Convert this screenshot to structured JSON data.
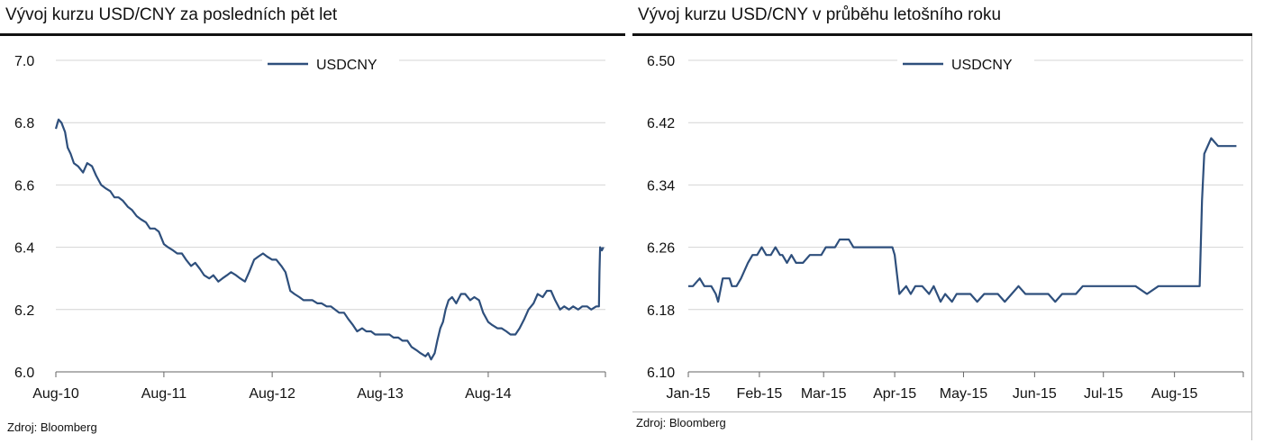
{
  "chart_data": [
    {
      "type": "line",
      "title": "Vývoj kurzu USD/CNY za posledních pět let",
      "source": "Zdroj: Bloomberg",
      "legend": "top-center",
      "grid": true,
      "ylim": [
        6.0,
        7.0
      ],
      "yticks": [
        6.0,
        6.2,
        6.4,
        6.6,
        6.8,
        7.0
      ],
      "ytick_labels": [
        "6.0",
        "6.2",
        "6.4",
        "6.6",
        "6.8",
        "7.0"
      ],
      "xlim": [
        "2010-08-01",
        "2015-09-01"
      ],
      "xticks": [
        "2010-08-01",
        "2011-08-01",
        "2012-08-01",
        "2013-08-01",
        "2014-08-01"
      ],
      "xtick_labels": [
        "Aug-10",
        "Aug-11",
        "Aug-12",
        "Aug-13",
        "Aug-14"
      ],
      "color": "#2e4f7c",
      "series": [
        {
          "name": "USDCNY",
          "x": [
            "2010-08-01",
            "2010-08-10",
            "2010-08-20",
            "2010-09-01",
            "2010-09-10",
            "2010-09-20",
            "2010-10-01",
            "2010-10-15",
            "2010-11-01",
            "2010-11-15",
            "2010-12-01",
            "2010-12-15",
            "2011-01-01",
            "2011-01-15",
            "2011-02-01",
            "2011-02-15",
            "2011-03-01",
            "2011-03-15",
            "2011-04-01",
            "2011-04-15",
            "2011-05-01",
            "2011-05-15",
            "2011-06-01",
            "2011-06-15",
            "2011-07-01",
            "2011-07-15",
            "2011-08-01",
            "2011-08-15",
            "2011-09-01",
            "2011-09-15",
            "2011-10-01",
            "2011-10-15",
            "2011-11-01",
            "2011-11-15",
            "2011-12-01",
            "2011-12-15",
            "2012-01-01",
            "2012-01-15",
            "2012-02-01",
            "2012-02-15",
            "2012-03-01",
            "2012-03-15",
            "2012-04-01",
            "2012-04-15",
            "2012-05-01",
            "2012-05-15",
            "2012-06-01",
            "2012-06-15",
            "2012-07-01",
            "2012-07-15",
            "2012-08-01",
            "2012-08-15",
            "2012-09-01",
            "2012-09-15",
            "2012-10-01",
            "2012-10-15",
            "2012-11-01",
            "2012-11-15",
            "2012-12-01",
            "2012-12-15",
            "2013-01-01",
            "2013-01-15",
            "2013-02-01",
            "2013-02-15",
            "2013-03-01",
            "2013-03-15",
            "2013-04-01",
            "2013-04-15",
            "2013-05-01",
            "2013-05-15",
            "2013-06-01",
            "2013-06-15",
            "2013-07-01",
            "2013-07-15",
            "2013-08-01",
            "2013-08-15",
            "2013-09-01",
            "2013-09-15",
            "2013-10-01",
            "2013-10-15",
            "2013-11-01",
            "2013-11-15",
            "2013-12-01",
            "2013-12-15",
            "2014-01-01",
            "2014-01-10",
            "2014-01-20",
            "2014-02-01",
            "2014-02-10",
            "2014-02-20",
            "2014-03-01",
            "2014-03-10",
            "2014-03-20",
            "2014-04-01",
            "2014-04-15",
            "2014-05-01",
            "2014-05-15",
            "2014-06-01",
            "2014-06-15",
            "2014-07-01",
            "2014-07-15",
            "2014-08-01",
            "2014-08-15",
            "2014-09-01",
            "2014-09-15",
            "2014-10-01",
            "2014-10-15",
            "2014-11-01",
            "2014-11-15",
            "2014-12-01",
            "2014-12-15",
            "2015-01-01",
            "2015-01-15",
            "2015-02-01",
            "2015-02-15",
            "2015-03-01",
            "2015-03-15",
            "2015-04-01",
            "2015-04-15",
            "2015-05-01",
            "2015-05-15",
            "2015-06-01",
            "2015-06-15",
            "2015-07-01",
            "2015-07-15",
            "2015-08-01",
            "2015-08-05",
            "2015-08-10",
            "2015-08-12",
            "2015-08-14",
            "2015-08-20",
            "2015-08-25"
          ],
          "values": [
            6.78,
            6.81,
            6.8,
            6.77,
            6.72,
            6.7,
            6.67,
            6.66,
            6.64,
            6.67,
            6.66,
            6.63,
            6.6,
            6.59,
            6.58,
            6.56,
            6.56,
            6.55,
            6.53,
            6.52,
            6.5,
            6.49,
            6.48,
            6.46,
            6.46,
            6.45,
            6.41,
            6.4,
            6.39,
            6.38,
            6.38,
            6.36,
            6.34,
            6.35,
            6.33,
            6.31,
            6.3,
            6.31,
            6.29,
            6.3,
            6.31,
            6.32,
            6.31,
            6.3,
            6.29,
            6.32,
            6.36,
            6.37,
            6.38,
            6.37,
            6.36,
            6.36,
            6.34,
            6.32,
            6.26,
            6.25,
            6.24,
            6.23,
            6.23,
            6.23,
            6.22,
            6.22,
            6.21,
            6.21,
            6.2,
            6.19,
            6.19,
            6.17,
            6.15,
            6.13,
            6.14,
            6.13,
            6.13,
            6.12,
            6.12,
            6.12,
            6.12,
            6.11,
            6.11,
            6.1,
            6.1,
            6.08,
            6.07,
            6.06,
            6.05,
            6.06,
            6.04,
            6.06,
            6.1,
            6.14,
            6.16,
            6.2,
            6.23,
            6.24,
            6.22,
            6.25,
            6.25,
            6.23,
            6.24,
            6.23,
            6.19,
            6.16,
            6.15,
            6.14,
            6.14,
            6.13,
            6.12,
            6.12,
            6.14,
            6.17,
            6.2,
            6.22,
            6.25,
            6.24,
            6.26,
            6.26,
            6.23,
            6.2,
            6.21,
            6.2,
            6.21,
            6.2,
            6.21,
            6.21,
            6.2,
            6.21,
            6.21,
            6.21,
            6.32,
            6.4,
            6.39,
            6.4
          ]
        }
      ]
    },
    {
      "type": "line",
      "title": "Vývoj kurzu USD/CNY v průběhu letošního roku",
      "source": "Zdroj: Bloomberg",
      "legend": "top-center",
      "grid": true,
      "ylim": [
        6.1,
        6.5
      ],
      "yticks": [
        6.1,
        6.18,
        6.26,
        6.34,
        6.42,
        6.5
      ],
      "ytick_labels": [
        "6.10",
        "6.18",
        "6.26",
        "6.34",
        "6.42",
        "6.50"
      ],
      "xlim": [
        "2015-01-01",
        "2015-08-31"
      ],
      "xticks": [
        "2015-01-01",
        "2015-02-01",
        "2015-03-01",
        "2015-04-01",
        "2015-05-01",
        "2015-06-01",
        "2015-07-01",
        "2015-08-01"
      ],
      "xtick_labels": [
        "Jan-15",
        "Feb-15",
        "Mar-15",
        "Apr-15",
        "May-15",
        "Jun-15",
        "Jul-15",
        "Aug-15"
      ],
      "color": "#2e4f7c",
      "series": [
        {
          "name": "USDCNY",
          "x": [
            "2015-01-01",
            "2015-01-03",
            "2015-01-06",
            "2015-01-08",
            "2015-01-11",
            "2015-01-13",
            "2015-01-14",
            "2015-01-16",
            "2015-01-19",
            "2015-01-20",
            "2015-01-22",
            "2015-01-24",
            "2015-01-27",
            "2015-01-29",
            "2015-01-31",
            "2015-02-02",
            "2015-02-04",
            "2015-02-06",
            "2015-02-08",
            "2015-02-10",
            "2015-02-11",
            "2015-02-13",
            "2015-02-15",
            "2015-02-17",
            "2015-02-20",
            "2015-02-23",
            "2015-02-25",
            "2015-02-28",
            "2015-03-02",
            "2015-03-04",
            "2015-03-06",
            "2015-03-08",
            "2015-03-10",
            "2015-03-12",
            "2015-03-14",
            "2015-03-17",
            "2015-03-20",
            "2015-03-23",
            "2015-03-26",
            "2015-03-28",
            "2015-03-31",
            "2015-04-01",
            "2015-04-03",
            "2015-04-06",
            "2015-04-08",
            "2015-04-10",
            "2015-04-13",
            "2015-04-16",
            "2015-04-18",
            "2015-04-21",
            "2015-04-23",
            "2015-04-26",
            "2015-04-28",
            "2015-05-01",
            "2015-05-04",
            "2015-05-07",
            "2015-05-10",
            "2015-05-13",
            "2015-05-16",
            "2015-05-19",
            "2015-05-22",
            "2015-05-25",
            "2015-05-28",
            "2015-06-01",
            "2015-06-04",
            "2015-06-07",
            "2015-06-10",
            "2015-06-13",
            "2015-06-16",
            "2015-06-19",
            "2015-06-22",
            "2015-06-25",
            "2015-06-28",
            "2015-07-01",
            "2015-07-05",
            "2015-07-10",
            "2015-07-15",
            "2015-07-20",
            "2015-07-25",
            "2015-07-30",
            "2015-08-03",
            "2015-08-06",
            "2015-08-10",
            "2015-08-11",
            "2015-08-12",
            "2015-08-13",
            "2015-08-14",
            "2015-08-17",
            "2015-08-20",
            "2015-08-24",
            "2015-08-28"
          ],
          "values": [
            6.21,
            6.21,
            6.22,
            6.21,
            6.21,
            6.2,
            6.19,
            6.22,
            6.22,
            6.21,
            6.21,
            6.22,
            6.24,
            6.25,
            6.25,
            6.26,
            6.25,
            6.25,
            6.26,
            6.25,
            6.25,
            6.24,
            6.25,
            6.24,
            6.24,
            6.25,
            6.25,
            6.25,
            6.26,
            6.26,
            6.26,
            6.27,
            6.27,
            6.27,
            6.26,
            6.26,
            6.26,
            6.26,
            6.26,
            6.26,
            6.26,
            6.25,
            6.2,
            6.21,
            6.2,
            6.21,
            6.21,
            6.2,
            6.21,
            6.19,
            6.2,
            6.19,
            6.2,
            6.2,
            6.2,
            6.19,
            6.2,
            6.2,
            6.2,
            6.19,
            6.2,
            6.21,
            6.2,
            6.2,
            6.2,
            6.2,
            6.19,
            6.2,
            6.2,
            6.2,
            6.21,
            6.21,
            6.21,
            6.21,
            6.21,
            6.21,
            6.21,
            6.2,
            6.21,
            6.21,
            6.21,
            6.21,
            6.21,
            6.21,
            6.21,
            6.32,
            6.38,
            6.4,
            6.39,
            6.39,
            6.39
          ]
        }
      ]
    }
  ]
}
